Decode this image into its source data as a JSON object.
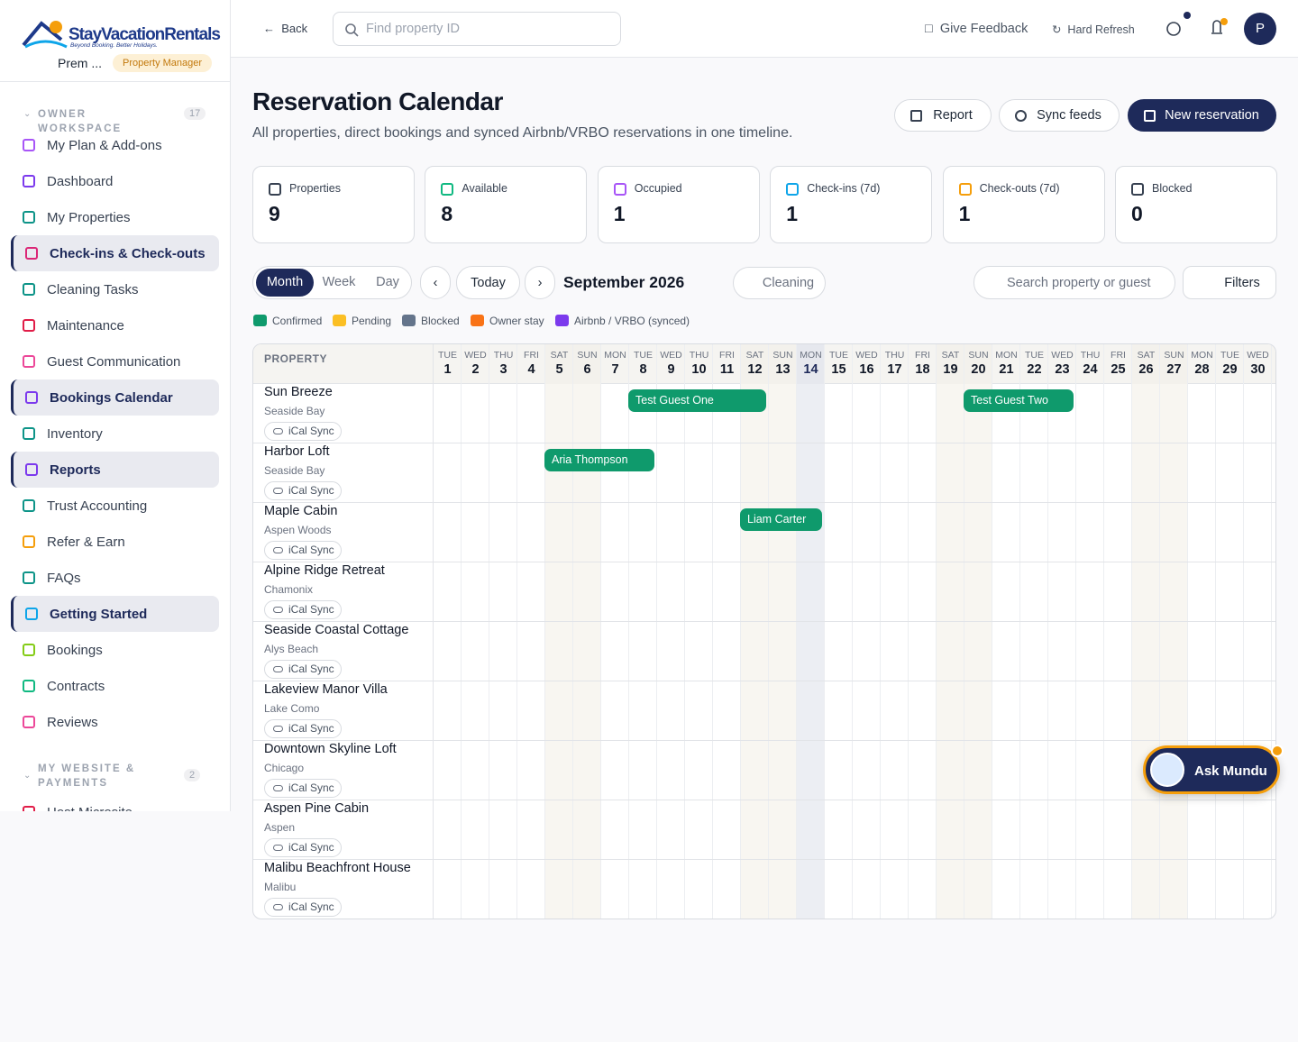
{
  "sidebar": {
    "brand": "StayVacationRentals",
    "tagline": "Beyond Booking. Better Holidays.",
    "user": "Prem ...",
    "role": "Property Manager",
    "sections": [
      {
        "title": "OWNER WORKSPACE",
        "count": "17",
        "items": [
          {
            "label": "My Plan & Add-ons"
          },
          {
            "label": "Dashboard"
          },
          {
            "label": "My Properties"
          },
          {
            "label": "Check-ins & Check-outs",
            "active": true
          },
          {
            "label": "Cleaning Tasks"
          },
          {
            "label": "Maintenance"
          },
          {
            "label": "Guest Communication"
          },
          {
            "label": "Bookings Calendar",
            "active": true
          },
          {
            "label": "Inventory"
          },
          {
            "label": "Reports",
            "active": true
          },
          {
            "label": "Trust Accounting"
          },
          {
            "label": "Refer & Earn"
          },
          {
            "label": "FAQs"
          },
          {
            "label": "Getting Started",
            "active": true
          },
          {
            "label": "Bookings"
          },
          {
            "label": "Contracts"
          },
          {
            "label": "Reviews"
          }
        ]
      },
      {
        "title": "MY WEBSITE & PAYMENTS",
        "count": "2",
        "items": [
          {
            "label": "Host Microsite"
          }
        ]
      }
    ]
  },
  "topbar": {
    "back": "Back",
    "search": "Find property ID",
    "feedback": "Give Feedback",
    "refresh": "Hard Refresh",
    "avatar": "P"
  },
  "header": {
    "title": "Reservation Calendar",
    "subtitle": "All properties, direct bookings and synced Airbnb/VRBO reservations in one timeline.",
    "actions": [
      "Report",
      "Sync feeds",
      "New reservation"
    ]
  },
  "stats": [
    {
      "label": "Properties",
      "value": 9
    },
    {
      "label": "Available",
      "value": 8
    },
    {
      "label": "Occupied",
      "value": 1
    },
    {
      "label": "Check-ins (7d)",
      "value": 1
    },
    {
      "label": "Check-outs (7d)",
      "value": 1
    },
    {
      "label": "Blocked",
      "value": 0
    }
  ],
  "toolbar": {
    "views": [
      "Month",
      "Week",
      "Day"
    ],
    "today": "Today",
    "month": "September 2026",
    "cleaning": "Cleaning",
    "search": "Search property or guest",
    "filters": "Filters"
  },
  "legend": [
    {
      "name": "Confirmed",
      "color": "#0f9a6c"
    },
    {
      "name": "Pending",
      "color": "#fbbf24"
    },
    {
      "name": "Blocked",
      "color": "#64748b"
    },
    {
      "name": "Owner stay",
      "color": "#f97316"
    },
    {
      "name": "Airbnb / VRBO (synced)",
      "color": "#7c3aed"
    }
  ],
  "calendar": {
    "header": "PROPERTY",
    "today": 14,
    "days": [
      {
        "dow": "TUE",
        "day": 1
      },
      {
        "dow": "WED",
        "day": 2
      },
      {
        "dow": "THU",
        "day": 3
      },
      {
        "dow": "FRI",
        "day": 4
      },
      {
        "dow": "SAT",
        "day": 5
      },
      {
        "dow": "SUN",
        "day": 6
      },
      {
        "dow": "MON",
        "day": 7
      },
      {
        "dow": "TUE",
        "day": 8
      },
      {
        "dow": "WED",
        "day": 9
      },
      {
        "dow": "THU",
        "day": 10
      },
      {
        "dow": "FRI",
        "day": 11
      },
      {
        "dow": "SAT",
        "day": 12
      },
      {
        "dow": "SUN",
        "day": 13
      },
      {
        "dow": "MON",
        "day": 14
      },
      {
        "dow": "TUE",
        "day": 15
      },
      {
        "dow": "WED",
        "day": 16
      },
      {
        "dow": "THU",
        "day": 17
      },
      {
        "dow": "FRI",
        "day": 18
      },
      {
        "dow": "SAT",
        "day": 19
      },
      {
        "dow": "SUN",
        "day": 20
      },
      {
        "dow": "MON",
        "day": 21
      },
      {
        "dow": "TUE",
        "day": 22
      },
      {
        "dow": "WED",
        "day": 23
      },
      {
        "dow": "THU",
        "day": 24
      },
      {
        "dow": "FRI",
        "day": 25
      },
      {
        "dow": "SAT",
        "day": 26
      },
      {
        "dow": "SUN",
        "day": 27
      },
      {
        "dow": "MON",
        "day": 28
      },
      {
        "dow": "TUE",
        "day": 29
      },
      {
        "dow": "WED",
        "day": 30
      }
    ],
    "properties": [
      {
        "name": "Sun Breeze",
        "location": "Seaside Bay",
        "sync": "iCal Sync"
      },
      {
        "name": "Harbor Loft",
        "location": "Seaside Bay",
        "sync": "iCal Sync"
      },
      {
        "name": "Maple Cabin",
        "location": "Aspen Woods",
        "sync": "iCal Sync"
      },
      {
        "name": "Alpine Ridge Retreat",
        "location": "Chamonix",
        "sync": "iCal Sync"
      },
      {
        "name": "Seaside Coastal Cottage",
        "location": "Alys Beach",
        "sync": "iCal Sync"
      },
      {
        "name": "Lakeview Manor Villa",
        "location": "Lake Como",
        "sync": "iCal Sync"
      },
      {
        "name": "Downtown Skyline Loft",
        "location": "Chicago",
        "sync": "iCal Sync"
      },
      {
        "name": "Aspen Pine Cabin",
        "location": "Aspen",
        "sync": "iCal Sync"
      },
      {
        "name": "Malibu Beachfront House",
        "location": "Malibu",
        "sync": "iCal Sync"
      }
    ],
    "bookings": [
      {
        "property": 0,
        "guest": "Test Guest One",
        "from": 8,
        "to": 12
      },
      {
        "property": 0,
        "guest": "Test Guest Two",
        "from": 20,
        "to": 23
      },
      {
        "property": 1,
        "guest": "Aria Thompson",
        "from": 5,
        "to": 8
      },
      {
        "property": 2,
        "guest": "Liam Carter",
        "from": 12,
        "to": 14
      }
    ]
  },
  "assistant": "Ask Mundu"
}
